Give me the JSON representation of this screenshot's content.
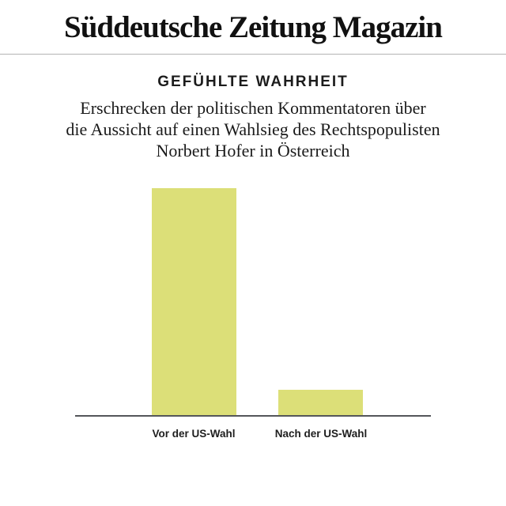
{
  "masthead": {
    "title": "Süddeutsche Zeitung Magazin"
  },
  "chart": {
    "title": "GEFÜHLTE WAHRHEIT",
    "subtitle_lines": [
      "Erschrecken der politischen Kommentatoren über",
      "die Aussicht auf einen Wahlsieg des Rechtspopulisten",
      "Norbert Hofer in Österreich"
    ]
  },
  "chart_data": {
    "type": "bar",
    "title": "GEFÜHLTE WAHRHEIT",
    "subtitle": "Erschrecken der politischen Kommentatoren über die Aussicht auf einen Wahlsieg des Rechtspopulisten Norbert Hofer in Österreich",
    "categories": [
      "Vor der US-Wahl",
      "Nach der US-Wahl"
    ],
    "values": [
      90,
      10
    ],
    "xlabel": "",
    "ylabel": "",
    "ylim": [
      0,
      100
    ],
    "grid": false,
    "legend": false,
    "value_axis_shown": false,
    "bar_color_hex": "#dcdf78",
    "axis_color_hex": "#54565a"
  },
  "colors": {
    "background": "#ffffff",
    "divider": "#b4b4b4",
    "masthead_text": "#111111",
    "body_text": "#1a1a1a"
  }
}
